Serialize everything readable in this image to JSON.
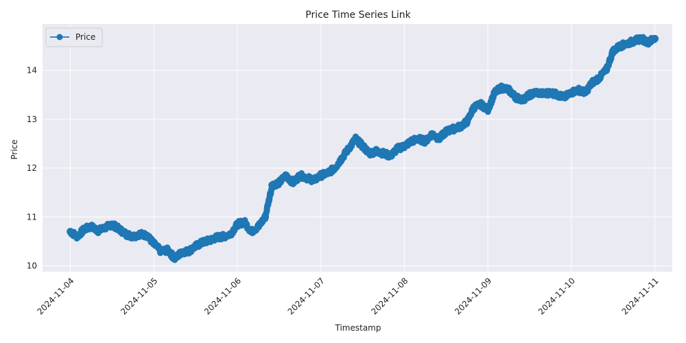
{
  "chart_data": {
    "type": "line",
    "title": "Price Time Series Link",
    "xlabel": "Timestamp",
    "ylabel": "Price",
    "grid": true,
    "legend_position": "top-left",
    "colors": {
      "line": "#1f77b4",
      "plot_bg": "#eaeaf2",
      "grid": "#ffffff"
    },
    "x_tick_labels": [
      "2024-11-04",
      "2024-11-05",
      "2024-11-06",
      "2024-11-07",
      "2024-11-08",
      "2024-11-09",
      "2024-11-10",
      "2024-11-11"
    ],
    "y_ticks": [
      10,
      11,
      12,
      13,
      14
    ],
    "xlim": [
      "2024-11-03T16:00",
      "2024-11-11T05:00"
    ],
    "ylim": [
      9.88,
      14.95
    ],
    "series": [
      {
        "name": "Price",
        "marker": "circle",
        "x": [
          "2024-11-04T00:00",
          "2024-11-04T02:00",
          "2024-11-04T04:00",
          "2024-11-04T06:00",
          "2024-11-04T08:00",
          "2024-11-04T10:00",
          "2024-11-04T12:00",
          "2024-11-04T14:00",
          "2024-11-04T16:00",
          "2024-11-04T18:00",
          "2024-11-04T20:00",
          "2024-11-04T22:00",
          "2024-11-05T00:00",
          "2024-11-05T02:00",
          "2024-11-05T04:00",
          "2024-11-05T06:00",
          "2024-11-05T08:00",
          "2024-11-05T10:00",
          "2024-11-05T12:00",
          "2024-11-05T14:00",
          "2024-11-05T16:00",
          "2024-11-05T18:00",
          "2024-11-05T20:00",
          "2024-11-05T22:00",
          "2024-11-06T00:00",
          "2024-11-06T02:00",
          "2024-11-06T04:00",
          "2024-11-06T06:00",
          "2024-11-06T08:00",
          "2024-11-06T10:00",
          "2024-11-06T12:00",
          "2024-11-06T14:00",
          "2024-11-06T16:00",
          "2024-11-06T18:00",
          "2024-11-06T20:00",
          "2024-11-06T22:00",
          "2024-11-07T00:00",
          "2024-11-07T02:00",
          "2024-11-07T04:00",
          "2024-11-07T06:00",
          "2024-11-07T08:00",
          "2024-11-07T10:00",
          "2024-11-07T12:00",
          "2024-11-07T14:00",
          "2024-11-07T16:00",
          "2024-11-07T18:00",
          "2024-11-07T20:00",
          "2024-11-07T22:00",
          "2024-11-08T00:00",
          "2024-11-08T02:00",
          "2024-11-08T04:00",
          "2024-11-08T06:00",
          "2024-11-08T08:00",
          "2024-11-08T10:00",
          "2024-11-08T12:00",
          "2024-11-08T14:00",
          "2024-11-08T16:00",
          "2024-11-08T18:00",
          "2024-11-08T20:00",
          "2024-11-08T22:00",
          "2024-11-09T00:00",
          "2024-11-09T02:00",
          "2024-11-09T04:00",
          "2024-11-09T06:00",
          "2024-11-09T08:00",
          "2024-11-09T10:00",
          "2024-11-09T12:00",
          "2024-11-09T14:00",
          "2024-11-09T16:00",
          "2024-11-09T18:00",
          "2024-11-09T20:00",
          "2024-11-09T22:00",
          "2024-11-10T00:00",
          "2024-11-10T02:00",
          "2024-11-10T04:00",
          "2024-11-10T06:00",
          "2024-11-10T08:00",
          "2024-11-10T10:00",
          "2024-11-10T12:00",
          "2024-11-10T14:00",
          "2024-11-10T16:00",
          "2024-11-10T18:00",
          "2024-11-10T20:00",
          "2024-11-10T22:00",
          "2024-11-11T00:00"
        ],
        "y": [
          10.7,
          10.6,
          10.75,
          10.8,
          10.72,
          10.78,
          10.85,
          10.75,
          10.65,
          10.6,
          10.65,
          10.62,
          10.45,
          10.3,
          10.32,
          10.15,
          10.28,
          10.3,
          10.4,
          10.48,
          10.52,
          10.58,
          10.6,
          10.65,
          10.85,
          10.9,
          10.7,
          10.8,
          11.0,
          11.65,
          11.7,
          11.85,
          11.7,
          11.85,
          11.8,
          11.75,
          11.85,
          11.9,
          12.0,
          12.2,
          12.4,
          12.6,
          12.45,
          12.3,
          12.35,
          12.3,
          12.25,
          12.4,
          12.45,
          12.55,
          12.6,
          12.55,
          12.7,
          12.6,
          12.75,
          12.8,
          12.85,
          12.95,
          13.25,
          13.3,
          13.2,
          13.55,
          13.65,
          13.6,
          13.45,
          13.4,
          13.5,
          13.55,
          13.52,
          13.55,
          13.5,
          13.45,
          13.55,
          13.6,
          13.55,
          13.75,
          13.85,
          14.0,
          14.4,
          14.5,
          14.55,
          14.6,
          14.65,
          14.58,
          14.65
        ]
      }
    ]
  }
}
